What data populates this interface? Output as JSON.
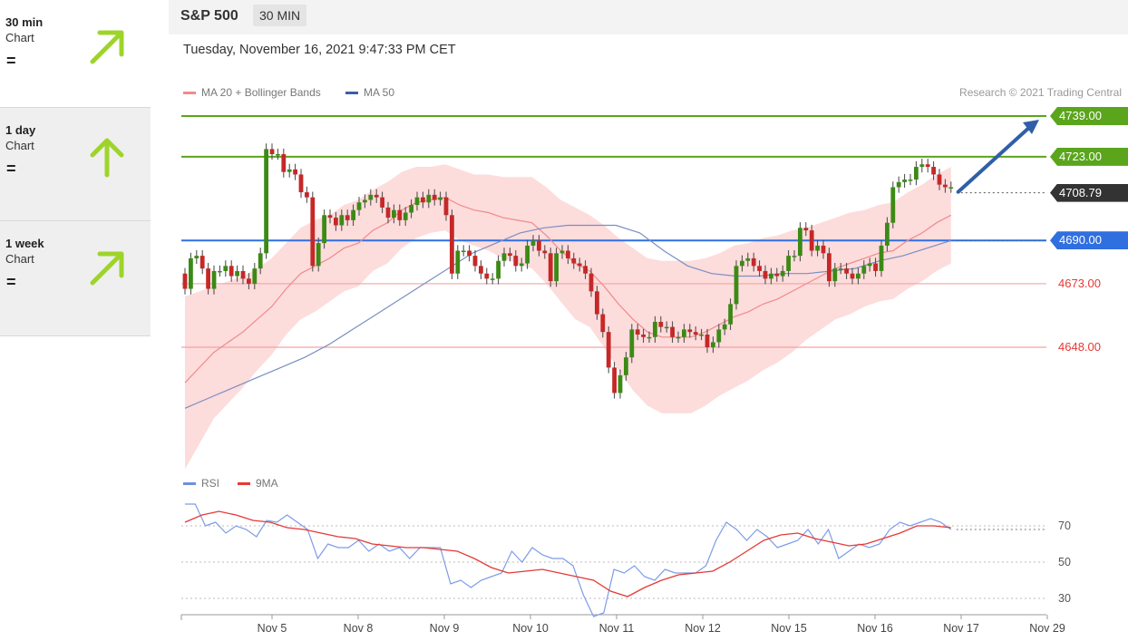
{
  "sidebar": {
    "items": [
      {
        "name": "30 min",
        "sub": "Chart",
        "eq": "=",
        "direction": "up-right",
        "color": "#9ed42a"
      },
      {
        "name": "1 day",
        "sub": "Chart",
        "eq": "=",
        "direction": "up",
        "color": "#9ed42a"
      },
      {
        "name": "1 week",
        "sub": "Chart",
        "eq": "=",
        "direction": "up-right",
        "color": "#9ed42a"
      }
    ]
  },
  "header": {
    "symbol": "S&P 500",
    "interval": "30 MIN",
    "datetime": "Tuesday, November 16, 2021 9:47:33 PM CET"
  },
  "legend": {
    "ma20": "MA 20 + Bollinger Bands",
    "ma50": "MA 50",
    "copyright": "Research © 2021 Trading Central"
  },
  "rsi_legend": {
    "rsi": "RSI",
    "ma9": "9MA"
  },
  "chart_data": [
    {
      "type": "candlestick",
      "title": "S&P 500",
      "ylim": [
        4618,
        4744
      ],
      "current_price": "4708.79",
      "levels": [
        {
          "value": 4739.0,
          "label": "4739.00",
          "color": "#5aa51c",
          "style": "filled"
        },
        {
          "value": 4723.0,
          "label": "4723.00",
          "color": "#5aa51c",
          "style": "filled"
        },
        {
          "value": 4708.79,
          "label": "4708.79",
          "color": "#333333",
          "style": "filled"
        },
        {
          "value": 4690.0,
          "label": "4690.00",
          "color": "#2f6fe0",
          "style": "filled"
        },
        {
          "value": 4673.0,
          "label": "4673.00",
          "color": "#e53935",
          "style": "text"
        },
        {
          "value": 4648.0,
          "label": "4648.00",
          "color": "#e53935",
          "style": "text"
        }
      ],
      "x_ticks": [
        "Nov 5",
        "Nov 8",
        "Nov 9",
        "Nov 10",
        "Nov 11",
        "Nov 12",
        "Nov 15",
        "Nov 16",
        "Nov 17",
        "Nov 29"
      ],
      "closes": [
        4671,
        4683,
        4684,
        4679,
        4671,
        4678,
        4678,
        4680,
        4676,
        4678,
        4675,
        4673,
        4679,
        4685,
        4726,
        4724,
        4724,
        4717,
        4718,
        4716,
        4709,
        4707,
        4680,
        4689,
        4700,
        4699,
        4696,
        4700,
        4698,
        4702,
        4705,
        4706,
        4708,
        4707,
        4703,
        4699,
        4702,
        4698,
        4701,
        4704,
        4707,
        4705,
        4708,
        4706,
        4707,
        4700,
        4677,
        4686,
        4686,
        4684,
        4680,
        4677,
        4675,
        4675,
        4682,
        4685,
        4684,
        4680,
        4681,
        4688,
        4690,
        4686,
        4685,
        4674,
        4685,
        4686,
        4683,
        4681,
        4680,
        4677,
        4670,
        4661,
        4654,
        4640,
        4630,
        4637,
        4644,
        4655,
        4653,
        4652,
        4652,
        4658,
        4656,
        4656,
        4652,
        4652,
        4655,
        4654,
        4653,
        4653,
        4648,
        4650,
        4655,
        4657,
        4665,
        4680,
        4682,
        4683,
        4680,
        4678,
        4675,
        4677,
        4676,
        4678,
        4684,
        4684,
        4695,
        4694,
        4686,
        4688,
        4685,
        4674,
        4679,
        4679,
        4677,
        4675,
        4677,
        4680,
        4681,
        4678,
        4688,
        4697,
        4711,
        4713,
        4714,
        4714,
        4719,
        4720,
        4719,
        4716,
        4712,
        4711,
        4711
      ],
      "ma20": [
        4634,
        4640,
        4646,
        4650,
        4654,
        4659,
        4664,
        4671,
        4677,
        4680,
        4683,
        4687,
        4689,
        4694,
        4697,
        4702,
        4705,
        4706,
        4707,
        4704,
        4702,
        4701,
        4699,
        4698,
        4697,
        4692,
        4686,
        4681,
        4678,
        4672,
        4665,
        4659,
        4654,
        4652,
        4652,
        4652,
        4654,
        4657,
        4660,
        4662,
        4665,
        4667,
        4670,
        4673,
        4676,
        4679,
        4681,
        4683,
        4685,
        4686,
        4690,
        4693,
        4697,
        4700
      ],
      "ma50": [
        4624,
        4628,
        4632,
        4636,
        4640,
        4644,
        4649,
        4655,
        4661,
        4667,
        4673,
        4679,
        4685,
        4689,
        4693,
        4695,
        4696,
        4696,
        4696,
        4693,
        4686,
        4680,
        4677,
        4676,
        4676,
        4677,
        4677,
        4678,
        4679,
        4682,
        4684,
        4687,
        4690
      ],
      "rsi_ylim": [
        20,
        90
      ],
      "rsi_ticks": [
        70,
        50,
        30
      ],
      "rsi": [
        82,
        82,
        70,
        72,
        66,
        70,
        68,
        64,
        73,
        72,
        76,
        72,
        68,
        52,
        60,
        58,
        58,
        62,
        56,
        60,
        56,
        58,
        52,
        58,
        58,
        58,
        38,
        40,
        36,
        40,
        42,
        44,
        56,
        50,
        58,
        54,
        52,
        52,
        48,
        32,
        20,
        22,
        46,
        44,
        48,
        42,
        40,
        46,
        44,
        44,
        44,
        48,
        62,
        72,
        68,
        62,
        68,
        64,
        58,
        60,
        62,
        68,
        60,
        68,
        52,
        56,
        60,
        58,
        60,
        68,
        72,
        70,
        72,
        74,
        72,
        68
      ],
      "rsi_ma9": [
        72,
        76,
        78,
        76,
        73,
        72,
        69,
        68,
        66,
        64,
        63,
        60,
        59,
        58,
        58,
        57,
        56,
        52,
        47,
        44,
        45,
        46,
        44,
        42,
        40,
        34,
        31,
        36,
        40,
        43,
        44,
        45,
        50,
        56,
        62,
        65,
        66,
        63,
        61,
        59,
        60,
        63,
        66,
        70,
        70,
        69
      ]
    }
  ]
}
